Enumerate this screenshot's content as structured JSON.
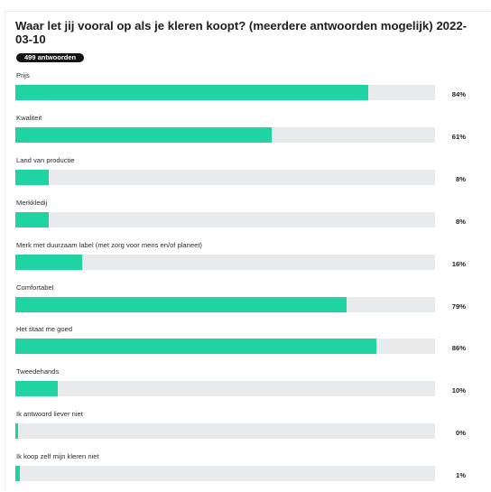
{
  "poll": {
    "title": "Waar let jij vooral op als je kleren koopt? (meerdere antwoorden mogelijk) 2022-03-10",
    "responses_badge": "499 antwoorden"
  },
  "colors": {
    "bar": "#20d3a3",
    "track": "#e8eaec",
    "badge": "#141414"
  },
  "chart_data": {
    "type": "bar",
    "orientation": "horizontal",
    "categories": [
      "Prijs",
      "Kwaliteit",
      "Land van productie",
      "Merkkledij",
      "Merk met duurzaam label (met zorg voor mens en/of planeet)",
      "Comfortabel",
      "Het staat me goed",
      "Tweedehands",
      "Ik antwoord liever niet",
      "Ik koop zelf mijn kleren niet"
    ],
    "values": [
      84,
      61,
      8,
      8,
      16,
      79,
      86,
      10,
      0,
      1
    ],
    "value_labels": [
      "84%",
      "61%",
      "8%",
      "8%",
      "16%",
      "79%",
      "86%",
      "10%",
      "0%",
      "1%"
    ],
    "xlim": [
      0,
      100
    ],
    "grid": false,
    "legend": "none"
  }
}
